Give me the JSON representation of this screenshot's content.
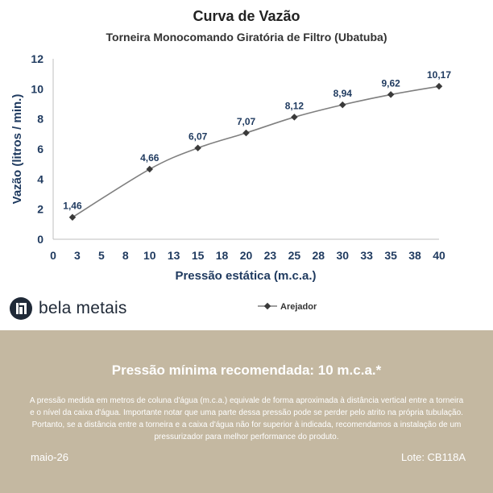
{
  "chart_data": {
    "type": "line",
    "title": "Curva de Vazão",
    "subtitle": "Torneira Monocomando Giratória de Filtro (Ubatuba)",
    "xlabel": "Pressão estática (m.c.a.)",
    "ylabel": "Vazão (litros / min.)",
    "xlim": [
      0,
      40
    ],
    "ylim": [
      0,
      12
    ],
    "x_ticks": [
      "0",
      "3",
      "5",
      "8",
      "10",
      "13",
      "15",
      "18",
      "20",
      "23",
      "25",
      "28",
      "30",
      "33",
      "35",
      "38",
      "40"
    ],
    "y_ticks": [
      "0",
      "2",
      "4",
      "6",
      "8",
      "10",
      "12"
    ],
    "grid": false,
    "legend_position": "bottom-right",
    "series": [
      {
        "name": "Arejador",
        "color": "#7f7f7f",
        "marker_color": "#3a3a3a",
        "x": [
          2,
          10,
          15,
          20,
          25,
          30,
          35,
          40
        ],
        "y": [
          1.46,
          4.66,
          6.07,
          7.07,
          8.12,
          8.94,
          9.62,
          10.17
        ],
        "labels": [
          "1,46",
          "4,66",
          "6,07",
          "7,07",
          "8,12",
          "8,94",
          "9,62",
          "10,17"
        ]
      }
    ]
  },
  "brand": {
    "name": "bela metais",
    "logo_icon": "bela-metais-logo-icon"
  },
  "info": {
    "heading": "Pressão mínima recomendada: 10 m.c.a.*",
    "body": "A pressão medida em metros de coluna d'água (m.c.a.) equivale de forma aproximada à distância vertical entre a torneira e o nível da caixa d'água. Importante notar que uma parte dessa pressão pode se perder pelo atrito na própria tubulação. Portanto, se a distância entre a torneira e a caixa d'água não for superior à indicada, recomendamos a instalação de um pressurizador para melhor performance do produto.",
    "date": "maio-26",
    "lot": "Lote: CB118A",
    "panel_color": "#c4b8a1"
  }
}
